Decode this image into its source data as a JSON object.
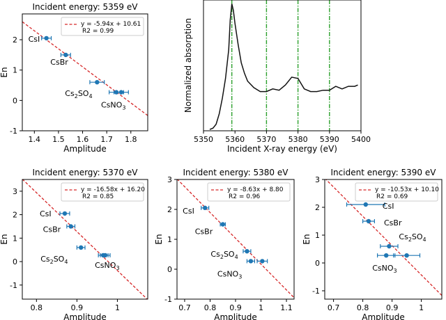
{
  "colors": {
    "fit": "#d62728",
    "points": "#1f77b4",
    "xanes": "#111111",
    "vline": "#2ca02c"
  },
  "chart_data": [
    {
      "type": "scatter",
      "title": "Incident energy: 5359 eV",
      "xlabel": "Amplitude",
      "ylabel": "En",
      "xlim": [
        1.35,
        1.87
      ],
      "ylim": [
        -1,
        2.85
      ],
      "xticks": [
        1.4,
        1.5,
        1.6,
        1.7,
        1.8
      ],
      "yticks": [
        -1,
        0,
        1,
        2
      ],
      "fit": {
        "slope": -5.94,
        "intercept": 10.61
      },
      "legend": {
        "equation": "y = -5.94x + 10.61",
        "r2": "R2 = 0.99"
      },
      "points": [
        {
          "name": "CsI",
          "x": 1.45,
          "y": 2.05,
          "xerr": 0.02
        },
        {
          "name": "CsBr",
          "x": 1.53,
          "y": 1.5,
          "xerr": 0.02
        },
        {
          "name": "Cs2SO4",
          "x": 1.66,
          "y": 0.6,
          "xerr": 0.03
        },
        {
          "name": "CsNO3",
          "x": 1.74,
          "y": 0.27,
          "xerr": 0.03
        },
        {
          "name": "CsNO3",
          "x": 1.76,
          "y": 0.27,
          "xerr": 0.03
        }
      ],
      "labels": [
        {
          "text": "CsI"
        },
        {
          "text": "CsBr"
        },
        {
          "text": "Cs",
          "sub": "2",
          "rest": "SO",
          "sub2": "4"
        },
        {
          "text": "CsNO",
          "sub": "3"
        }
      ]
    },
    {
      "type": "line",
      "title": "",
      "xlabel": "Incident X-ray energy (eV)",
      "ylabel": "Normalized absorption",
      "xlim": [
        5350,
        5400
      ],
      "ylim": [
        0,
        1.0
      ],
      "xticks": [
        5350,
        5360,
        5370,
        5380,
        5390,
        5400
      ],
      "yticks": [],
      "vlines": [
        5359,
        5370,
        5380,
        5390
      ],
      "x": [
        5352,
        5353,
        5354,
        5355,
        5356,
        5357,
        5358,
        5358.5,
        5359,
        5359.5,
        5360,
        5361,
        5362,
        5363,
        5364,
        5366,
        5368,
        5370,
        5372,
        5374,
        5376,
        5378,
        5380,
        5382,
        5384,
        5386,
        5388,
        5390,
        5392,
        5394,
        5396,
        5398,
        5399
      ],
      "y": [
        0.01,
        0.02,
        0.05,
        0.13,
        0.25,
        0.4,
        0.62,
        0.85,
        0.97,
        0.92,
        0.82,
        0.66,
        0.52,
        0.44,
        0.38,
        0.33,
        0.3,
        0.3,
        0.32,
        0.31,
        0.35,
        0.41,
        0.4,
        0.32,
        0.3,
        0.3,
        0.31,
        0.31,
        0.34,
        0.32,
        0.34,
        0.34,
        0.35
      ]
    },
    {
      "type": "scatter",
      "title": "Incident energy: 5370 eV",
      "xlabel": "Amplitude",
      "ylabel": "En",
      "xlim": [
        0.765,
        1.075
      ],
      "ylim": [
        -1.6,
        3.5
      ],
      "xticks": [
        0.8,
        0.9,
        1.0
      ],
      "yticks": [
        -1,
        0,
        1,
        2,
        3
      ],
      "fit": {
        "slope": -16.58,
        "intercept": 16.2
      },
      "legend": {
        "equation": "y = -16.58x + 16.20",
        "r2": "R2 = 0.85"
      },
      "points": [
        {
          "name": "CsI",
          "x": 0.87,
          "y": 2.05,
          "xerr": 0.012
        },
        {
          "name": "CsBr",
          "x": 0.885,
          "y": 1.5,
          "xerr": 0.01
        },
        {
          "name": "Cs2SO4",
          "x": 0.91,
          "y": 0.6,
          "xerr": 0.01
        },
        {
          "name": "CsNO3",
          "x": 0.965,
          "y": 0.27,
          "xerr": 0.012
        },
        {
          "name": "CsNO3",
          "x": 0.97,
          "y": 0.27,
          "xerr": 0.012
        }
      ],
      "labels": [
        {
          "text": "CsI"
        },
        {
          "text": "CsBr"
        },
        {
          "text": "Cs",
          "sub": "2",
          "rest": "SO",
          "sub2": "4"
        },
        {
          "text": "CsNO",
          "sub": "3"
        }
      ]
    },
    {
      "type": "scatter",
      "title": "Incident energy: 5380 eV",
      "xlabel": "Amplitude",
      "ylabel": "En",
      "xlim": [
        0.67,
        1.13
      ],
      "ylim": [
        -1,
        3.0
      ],
      "xticks": [
        0.7,
        0.8,
        0.9,
        1.0,
        1.1
      ],
      "yticks": [
        -1,
        0,
        1,
        2,
        3
      ],
      "fit": {
        "slope": -8.63,
        "intercept": 8.8
      },
      "legend": {
        "equation": "y = -8.63x + 8.80",
        "r2": "R2 = 0.96"
      },
      "points": [
        {
          "name": "CsI",
          "x": 0.78,
          "y": 2.05,
          "xerr": 0.015
        },
        {
          "name": "CsBr",
          "x": 0.85,
          "y": 1.5,
          "xerr": 0.01
        },
        {
          "name": "Cs2SO4",
          "x": 0.945,
          "y": 0.6,
          "xerr": 0.015
        },
        {
          "name": "CsNO3",
          "x": 0.96,
          "y": 0.27,
          "xerr": 0.015
        },
        {
          "name": "CsNO3",
          "x": 1.005,
          "y": 0.27,
          "xerr": 0.02
        }
      ],
      "labels": [
        {
          "text": "CsI"
        },
        {
          "text": "CsBr"
        },
        {
          "text": "Cs",
          "sub": "2",
          "rest": "SO",
          "sub2": "4"
        },
        {
          "text": "CsNO",
          "sub": "3"
        }
      ]
    },
    {
      "type": "scatter",
      "title": "Incident energy: 5390 eV",
      "xlabel": "Amplitude",
      "ylabel": "En",
      "xlim": [
        0.67,
        1.07
      ],
      "ylim": [
        -1.3,
        3.0
      ],
      "xticks": [
        0.7,
        0.8,
        0.9,
        1.0
      ],
      "yticks": [
        -1,
        0,
        1,
        2,
        3
      ],
      "fit": {
        "slope": -10.53,
        "intercept": 10.1
      },
      "legend": {
        "equation": "y = -10.53x + 10.10",
        "r2": "R2 = 0.69"
      },
      "points": [
        {
          "name": "CsI",
          "x": 0.81,
          "y": 2.1,
          "xerr": 0.065
        },
        {
          "name": "CsBr",
          "x": 0.82,
          "y": 1.5,
          "xerr": 0.02
        },
        {
          "name": "Cs2SO4",
          "x": 0.89,
          "y": 0.6,
          "xerr": 0.03
        },
        {
          "name": "CsNO3",
          "x": 0.88,
          "y": 0.27,
          "xerr": 0.03
        },
        {
          "name": "CsNO3",
          "x": 0.95,
          "y": 0.27,
          "xerr": 0.045
        }
      ],
      "labels": [
        {
          "text": "CsI"
        },
        {
          "text": "CsBr"
        },
        {
          "text": "Cs",
          "sub": "2",
          "rest": "SO",
          "sub2": "4"
        },
        {
          "text": "CsNO",
          "sub": "3"
        }
      ]
    }
  ]
}
